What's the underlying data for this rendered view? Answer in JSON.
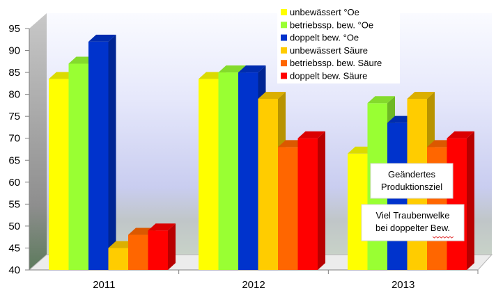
{
  "chart_data": {
    "type": "bar",
    "categories": [
      "2011",
      "2012",
      "2013"
    ],
    "ylim": [
      40,
      95
    ],
    "yticks": [
      40,
      45,
      50,
      55,
      60,
      65,
      70,
      75,
      80,
      85,
      90,
      95
    ],
    "grid": false,
    "legend_position": "top-right",
    "series": [
      {
        "name": "unbewässert °Oe",
        "color": "#ffff00",
        "values": [
          83.5,
          83.5,
          66.5
        ]
      },
      {
        "name": "betriebssp. bew. °Oe",
        "color": "#99ff33",
        "values": [
          87,
          85,
          78
        ]
      },
      {
        "name": "doppelt bew. °Oe",
        "color": "#0033cc",
        "values": [
          92,
          85,
          73.5
        ]
      },
      {
        "name": "unbewässert Säure",
        "color": "#ffcc00",
        "values": [
          45,
          79,
          79
        ]
      },
      {
        "name": "betriebssp. bew. Säure",
        "color": "#ff6600",
        "values": [
          48,
          68,
          68
        ]
      },
      {
        "name": "doppelt bew. Säure",
        "color": "#ff0000",
        "values": [
          49,
          70,
          70
        ]
      }
    ],
    "annotations": [
      {
        "lines": [
          "Geändertes",
          "Produktionsziel"
        ]
      },
      {
        "lines": [
          "Viel Traubenwelke",
          "bei doppelter Bew."
        ]
      }
    ]
  }
}
